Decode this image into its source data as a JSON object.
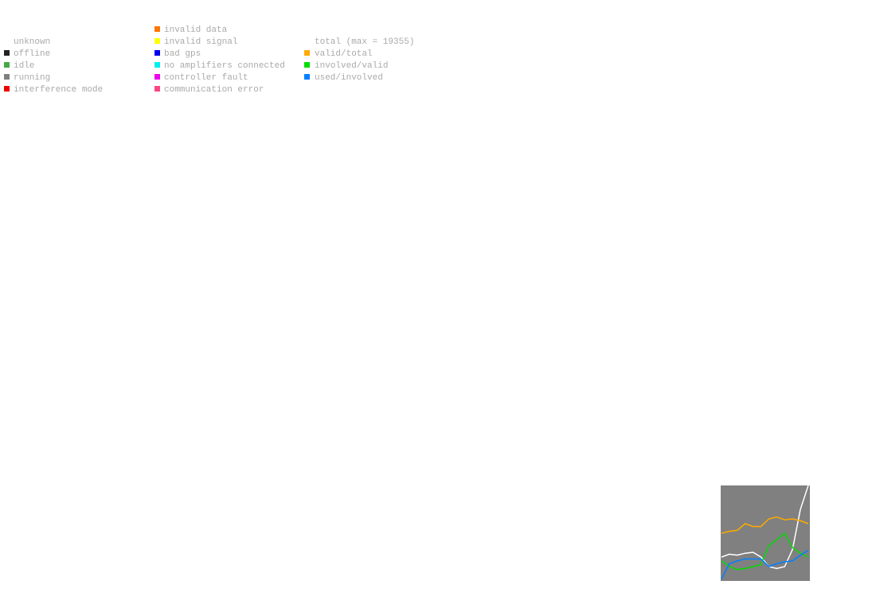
{
  "legend": {
    "columns": [
      {
        "items": [
          {
            "label": "unknown"
          },
          {
            "label": "offline",
            "color": "#222222"
          },
          {
            "label": "idle",
            "color": "#44aa44"
          },
          {
            "label": "running",
            "color": "#808080"
          },
          {
            "label": "interference mode",
            "color": "#ee0000"
          }
        ]
      },
      {
        "items": [
          {
            "label": "invalid data",
            "color": "#ff7700"
          },
          {
            "label": "invalid signal",
            "color": "#ffff00"
          },
          {
            "label": "bad gps",
            "color": "#0000ee"
          },
          {
            "label": "no amplifiers connected",
            "color": "#00eeee"
          },
          {
            "label": "controller fault",
            "color": "#ee00ee"
          },
          {
            "label": "communication error",
            "color": "#ff4488"
          }
        ]
      }
    ]
  },
  "chart_data": {
    "type": "line",
    "ylim": [
      0,
      1
    ],
    "background": "#808080",
    "series": [
      {
        "name": "total (max = 19355)",
        "color": "#ffffff",
        "values": [
          0.25,
          0.28,
          0.27,
          0.29,
          0.3,
          0.25,
          0.15,
          0.13,
          0.15,
          0.33,
          0.75,
          1.0
        ]
      },
      {
        "name": "valid/total",
        "color": "#ffaa00",
        "values": [
          0.5,
          0.52,
          0.53,
          0.6,
          0.57,
          0.57,
          0.65,
          0.67,
          0.64,
          0.65,
          0.63,
          0.6
        ]
      },
      {
        "name": "involved/valid",
        "color": "#00dd00",
        "values": [
          0.21,
          0.15,
          0.12,
          0.13,
          0.15,
          0.17,
          0.37,
          0.43,
          0.5,
          0.35,
          0.29,
          0.25
        ]
      },
      {
        "name": "used/involved",
        "color": "#0080ff",
        "values": [
          0.02,
          0.18,
          0.21,
          0.23,
          0.23,
          0.23,
          0.15,
          0.18,
          0.2,
          0.21,
          0.27,
          0.32
        ]
      }
    ]
  }
}
